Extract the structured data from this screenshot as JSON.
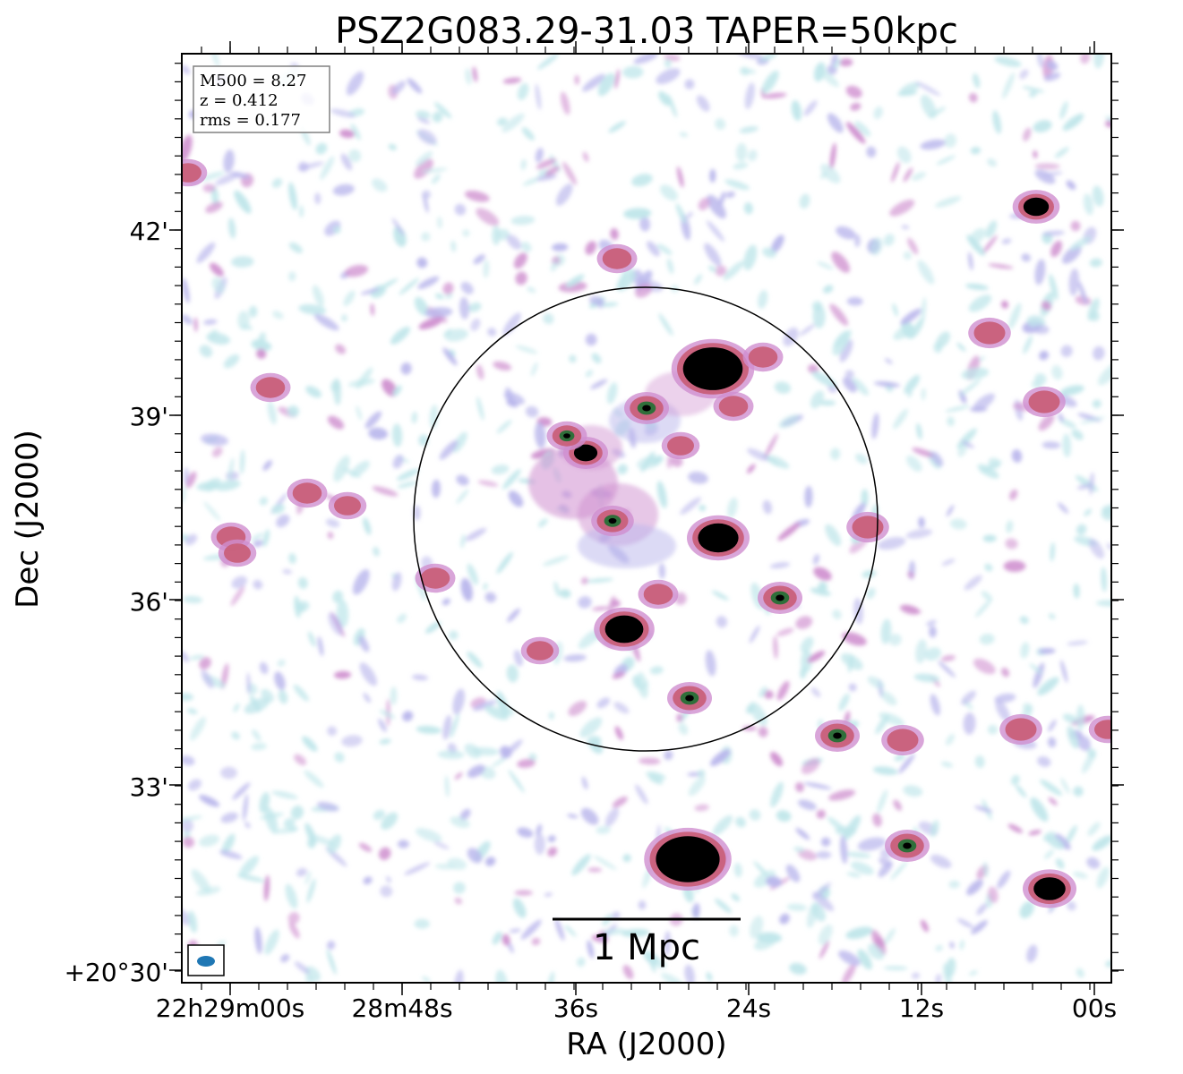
{
  "figure": {
    "title": "PSZ2G083.29-31.03 TAPER=50kpc",
    "xlabel": "RA (J2000)",
    "ylabel": "Dec (J2000)",
    "x_ticks": [
      "22h29m00s",
      "28m48s",
      "36s",
      "24s",
      "12s",
      "00s"
    ],
    "y_ticks": [
      "42'",
      "39'",
      "36'",
      "33'",
      "+20°30'"
    ],
    "info": {
      "m500": "M500 = 8.27",
      "z": "z = 0.412",
      "rms": "rms = 0.177"
    },
    "scalebar_label": "1 Mpc",
    "colors": {
      "faint": "#bfe6ea",
      "low": "#b9b6ec",
      "mid": "#cf8fcf",
      "high": "#c9607a",
      "peak": "#2f6f3a",
      "core": "#000000",
      "beam": "#1f77b4"
    }
  }
}
